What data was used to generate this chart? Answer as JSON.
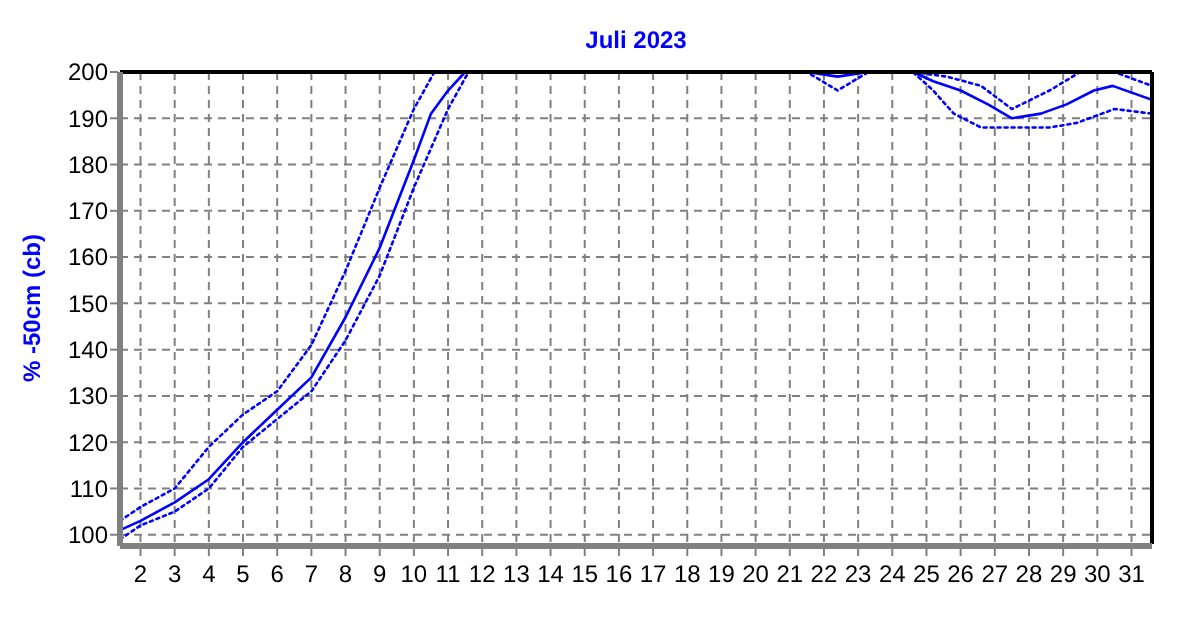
{
  "chart_data": {
    "type": "line",
    "title": "Juli 2023",
    "ylabel": "% -50cm (cb)",
    "xlim": [
      1.4,
      31.6
    ],
    "xticks": [
      2,
      3,
      4,
      5,
      6,
      7,
      8,
      9,
      10,
      11,
      12,
      13,
      14,
      15,
      16,
      17,
      18,
      19,
      20,
      21,
      22,
      23,
      24,
      25,
      26,
      27,
      28,
      29,
      30,
      31
    ],
    "ylim": [
      98,
      200
    ],
    "yticks": [
      100,
      110,
      120,
      130,
      140,
      150,
      160,
      170,
      180,
      190,
      200
    ],
    "grid": true,
    "marker": "none",
    "series": [
      {
        "color": "#0000ff",
        "line_style": "solid",
        "x": [
          1.4,
          2,
          3,
          4,
          5,
          6,
          7,
          8,
          9,
          10,
          10.5,
          11,
          11.5,
          21.5,
          22.4,
          23.3,
          24.6,
          25.2,
          26,
          26.8,
          27.5,
          28.35,
          29.1,
          29.9,
          30.45,
          31.6
        ],
        "values": [
          101,
          103,
          107,
          112,
          120,
          127,
          134,
          147,
          162,
          181,
          191,
          196,
          200,
          200,
          199,
          200,
          200,
          198,
          196,
          193,
          190,
          191,
          193,
          196,
          197,
          194
        ]
      },
      {
        "color": "#0000ff",
        "line_style": "dotted",
        "x": [
          1.4,
          2,
          3,
          4,
          5,
          6,
          7,
          8,
          9,
          10,
          10.6,
          24.6,
          25.6,
          26.6,
          27.5,
          28.6,
          29.5,
          30.5,
          31.6
        ],
        "values": [
          103,
          106,
          110,
          119,
          126,
          131,
          141,
          157,
          175,
          192,
          200,
          200,
          199,
          197,
          192,
          196,
          200,
          200,
          197
        ]
      },
      {
        "color": "#0000ff",
        "line_style": "dotted",
        "x": [
          1.4,
          2,
          3,
          4,
          5,
          6,
          7,
          8,
          9,
          10,
          11,
          11.6,
          21.5,
          22.4,
          23.3,
          24.6,
          25.2,
          25.8,
          26.6,
          28.6,
          29.4,
          30.5,
          31.6
        ],
        "values": [
          99,
          102,
          105,
          110,
          119,
          125,
          131,
          142,
          156,
          175,
          192,
          200,
          200,
          196,
          200,
          200,
          196,
          191,
          188,
          188,
          189,
          192,
          191
        ]
      }
    ]
  }
}
